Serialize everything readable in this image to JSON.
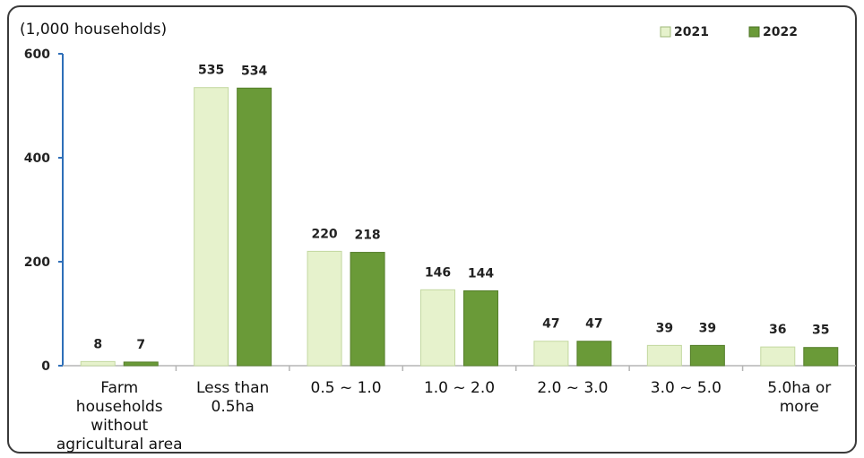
{
  "chart_data": {
    "type": "bar",
    "unit_label": "(1,000 households)",
    "categories": [
      "Farm households without agricultural area",
      "Less than 0.5ha",
      "0.5 ~ 1.0",
      "1.0 ~ 2.0",
      "2.0 ~ 3.0",
      "3.0 ~ 5.0",
      "5.0ha or more"
    ],
    "category_lines": [
      [
        "Farm",
        "households",
        "without",
        "agricultural area"
      ],
      [
        "Less than",
        "0.5ha"
      ],
      [
        "0.5 ~ 1.0"
      ],
      [
        "1.0 ~ 2.0"
      ],
      [
        "2.0 ~ 3.0"
      ],
      [
        "3.0 ~ 5.0"
      ],
      [
        "5.0ha or",
        "more"
      ]
    ],
    "series": [
      {
        "name": "2021",
        "color": "#e6f2cc",
        "values": [
          8,
          535,
          220,
          146,
          47,
          39,
          36
        ]
      },
      {
        "name": "2022",
        "color": "#6a9a38",
        "values": [
          7,
          534,
          218,
          144,
          47,
          39,
          35
        ]
      }
    ],
    "yticks": [
      0,
      200,
      400,
      600
    ],
    "ylim": [
      0,
      600
    ],
    "legend_position": "top-right",
    "grid": false
  }
}
